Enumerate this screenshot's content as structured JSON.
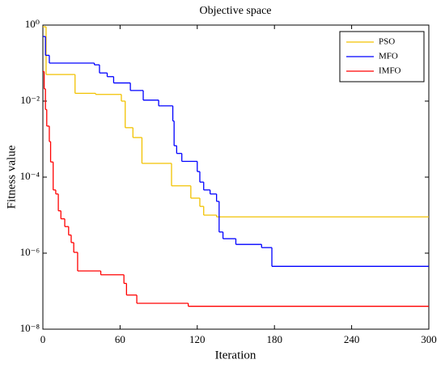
{
  "chart_data": {
    "type": "line",
    "step": true,
    "title": "Objective space",
    "x_label": "Iteration",
    "y_label": "Fitness value",
    "log_y": true,
    "legend": "upper right",
    "xlim": [
      0,
      300
    ],
    "xticks": [
      0,
      60,
      120,
      180,
      240,
      300
    ],
    "ylim": [
      1e-08,
      1
    ],
    "yticks": [
      {
        "value": 1e-08,
        "label": "10⁻⁸"
      },
      {
        "value": 1e-06,
        "label": "10⁻⁶"
      },
      {
        "value": 0.0001,
        "label": "10⁻⁴"
      },
      {
        "value": 0.01,
        "label": "10⁻²"
      },
      {
        "value": 1,
        "label": "10⁰"
      }
    ],
    "series": [
      {
        "name": "PSO",
        "color": "#f2c200",
        "x": [
          0,
          2.5,
          25,
          41,
          61,
          64,
          70,
          77,
          100,
          115,
          122,
          125,
          135
        ],
        "values": [
          0.9,
          0.05,
          0.016,
          0.015,
          0.01,
          0.002,
          0.0011,
          0.00023,
          5.9e-05,
          2.8e-05,
          1.7e-05,
          1e-05,
          9e-06
        ]
      },
      {
        "name": "MFO",
        "color": "#0000ff",
        "x": [
          0,
          2,
          5,
          40,
          44,
          50,
          55,
          68,
          78,
          90,
          101,
          102,
          104,
          108,
          120,
          122,
          125,
          130,
          135,
          137,
          140,
          150,
          170,
          178
        ],
        "values": [
          0.5,
          0.16,
          0.1,
          0.09,
          0.055,
          0.044,
          0.03,
          0.019,
          0.0106,
          0.0075,
          0.003,
          0.00067,
          0.00042,
          0.00026,
          0.00014,
          7.4e-05,
          4.6e-05,
          3.6e-05,
          2.3e-05,
          3.6e-06,
          2.4e-06,
          1.7e-06,
          1.4e-06,
          4.5e-07
        ]
      },
      {
        "name": "IMFO",
        "color": "#ff0000",
        "x": [
          0,
          1,
          2,
          3,
          5,
          6,
          8,
          10,
          12,
          14,
          17,
          20,
          22,
          24,
          27,
          45,
          63,
          65,
          73,
          113
        ],
        "values": [
          0.06,
          0.021,
          0.006,
          0.0022,
          0.00086,
          0.00025,
          4.6e-05,
          3.6e-05,
          1.3e-05,
          8e-06,
          5e-06,
          3e-06,
          1.9e-06,
          1.05e-06,
          3.4e-07,
          2.7e-07,
          1.6e-07,
          7.9e-08,
          4.8e-08,
          4e-08
        ]
      }
    ]
  }
}
